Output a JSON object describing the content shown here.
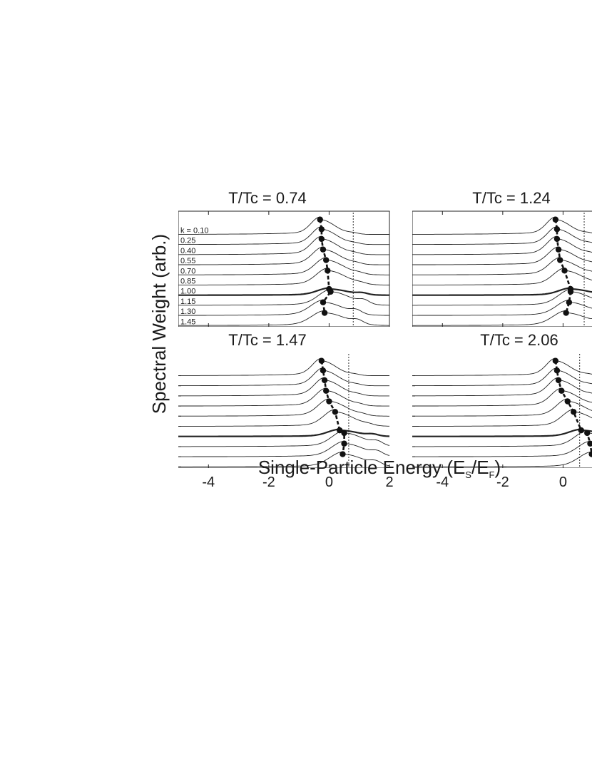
{
  "chart_data": {
    "type": "line",
    "ylabel": "Spectral Weight (arb.)",
    "xlabel": "Single-Particle Energy (E",
    "xlabel_sub1": "S",
    "xlabel_mid": "/E",
    "xlabel_sub2": "F",
    "xlabel_end": ")",
    "xlim": [
      -5,
      2
    ],
    "xticks": [
      "-4",
      "-2",
      "0",
      "2"
    ],
    "k_prefix": "k = ",
    "k_labels": [
      "0.10",
      "0.25",
      "0.40",
      "0.55",
      "0.70",
      "0.85",
      "1.00",
      "1.15",
      "1.30",
      "1.45"
    ],
    "highlighted_k": "1.00",
    "panels": [
      {
        "title": "T/Tc = 0.74",
        "dashed_line_x": 0.8,
        "peaks": [
          -0.3,
          -0.25,
          -0.25,
          -0.2,
          -0.1,
          -0.05,
          0.0,
          0.05,
          -0.2,
          -0.15
        ]
      },
      {
        "title": "T/Tc = 1.24",
        "dashed_line_x": 0.7,
        "peaks": [
          -0.25,
          -0.2,
          -0.2,
          -0.15,
          -0.1,
          0.05,
          0.25,
          0.25,
          0.2,
          0.1
        ]
      },
      {
        "title": "T/Tc = 1.47",
        "dashed_line_x": 0.65,
        "peaks": [
          -0.25,
          -0.2,
          -0.15,
          -0.1,
          0.0,
          0.2,
          0.35,
          0.5,
          0.5,
          0.45
        ]
      },
      {
        "title": "T/Tc = 2.06",
        "dashed_line_x": 0.55,
        "peaks": [
          -0.25,
          -0.2,
          -0.15,
          -0.05,
          0.15,
          0.35,
          0.6,
          0.8,
          0.9,
          0.95
        ]
      }
    ]
  }
}
